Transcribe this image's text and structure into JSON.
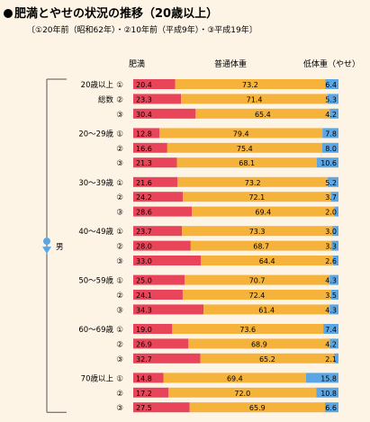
{
  "title": "肥満とやせの状況の推移（20歳以上）",
  "legend_note": "〔①20年前（昭和62年）・②10年前（平成9年）・③平成19年〕",
  "colors": {
    "obese": "#e8455a",
    "normal": "#f5b33c",
    "thin": "#5ba7e6",
    "bg": "#fdf4e6"
  },
  "chart_data": {
    "type": "bar",
    "stacked": true,
    "orientation": "horizontal",
    "title": "肥満とやせの状況の推移（20歳以上）",
    "sex_label": "男",
    "column_headers": [
      "肥満",
      "普通体重",
      "低体重（やせ）"
    ],
    "row_markers": [
      "①",
      "②",
      "③"
    ],
    "groups": [
      {
        "label": [
          "20歳以上",
          "総数"
        ],
        "rows": [
          [
            20.4,
            73.2,
            6.4
          ],
          [
            23.3,
            71.4,
            5.3
          ],
          [
            30.4,
            65.4,
            4.2
          ]
        ]
      },
      {
        "label": [
          "20～29歳"
        ],
        "rows": [
          [
            12.8,
            79.4,
            7.8
          ],
          [
            16.6,
            75.4,
            8.0
          ],
          [
            21.3,
            68.1,
            10.6
          ]
        ]
      },
      {
        "label": [
          "30～39歳"
        ],
        "rows": [
          [
            21.6,
            73.2,
            5.2
          ],
          [
            24.2,
            72.1,
            3.7
          ],
          [
            28.6,
            69.4,
            2.0
          ]
        ]
      },
      {
        "label": [
          "40～49歳"
        ],
        "rows": [
          [
            23.7,
            73.3,
            3.0
          ],
          [
            28.0,
            68.7,
            3.3
          ],
          [
            33.0,
            64.4,
            2.6
          ]
        ]
      },
      {
        "label": [
          "50～59歳"
        ],
        "rows": [
          [
            25.0,
            70.7,
            4.3
          ],
          [
            24.1,
            72.4,
            3.5
          ],
          [
            34.3,
            61.4,
            4.3
          ]
        ]
      },
      {
        "label": [
          "60～69歳"
        ],
        "rows": [
          [
            19.0,
            73.6,
            7.4
          ],
          [
            26.9,
            68.9,
            4.2
          ],
          [
            32.7,
            65.2,
            2.1
          ]
        ]
      },
      {
        "label": [
          "70歳以上"
        ],
        "rows": [
          [
            14.8,
            69.4,
            15.8
          ],
          [
            17.2,
            72.0,
            10.8
          ],
          [
            27.5,
            65.9,
            6.6
          ]
        ]
      }
    ]
  }
}
